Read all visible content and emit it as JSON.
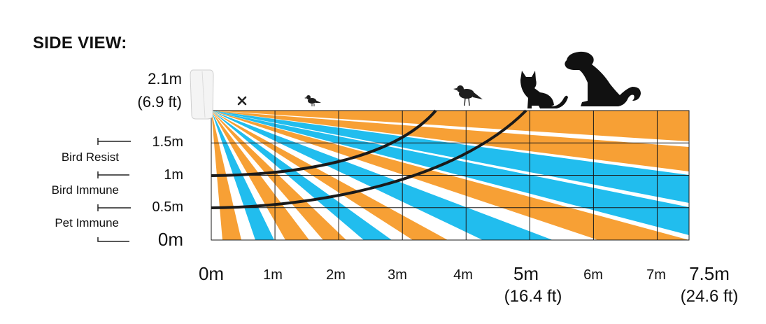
{
  "title": "SIDE VIEW:",
  "mount": {
    "height_m": "2.1m",
    "height_ft": "(6.9 ft)"
  },
  "y_ticks": [
    {
      "value": 1.5,
      "label": "1.5m"
    },
    {
      "value": 1.0,
      "label": "1m"
    },
    {
      "value": 0.5,
      "label": "0.5m"
    },
    {
      "value": 0.0,
      "label": "0m"
    }
  ],
  "zones": [
    {
      "label": "Bird Resist",
      "from_m": 1.0,
      "to_m": 1.5
    },
    {
      "label": "Bird Immune",
      "from_m": 0.5,
      "to_m": 1.0
    },
    {
      "label": "Pet Immune",
      "from_m": 0.0,
      "to_m": 0.5
    }
  ],
  "x_ticks": [
    {
      "label": "0m",
      "sub": ""
    },
    {
      "label": "1m",
      "sub": ""
    },
    {
      "label": "2m",
      "sub": ""
    },
    {
      "label": "3m",
      "sub": ""
    },
    {
      "label": "4m",
      "sub": ""
    },
    {
      "label": "5m",
      "sub": "(16.4 ft)"
    },
    {
      "label": "6m",
      "sub": ""
    },
    {
      "label": "7m",
      "sub": ""
    },
    {
      "label": "7.5m",
      "sub": "(24.6 ft)"
    }
  ],
  "icons": [
    "x-mark-icon",
    "small-bird-icon",
    "bird-icon",
    "cat-icon",
    "dog-icon"
  ],
  "colors": {
    "orange": "#f7a035",
    "blue": "#21bdee",
    "grid": "#1a1a1a",
    "curve": "#1a1a1a"
  }
}
